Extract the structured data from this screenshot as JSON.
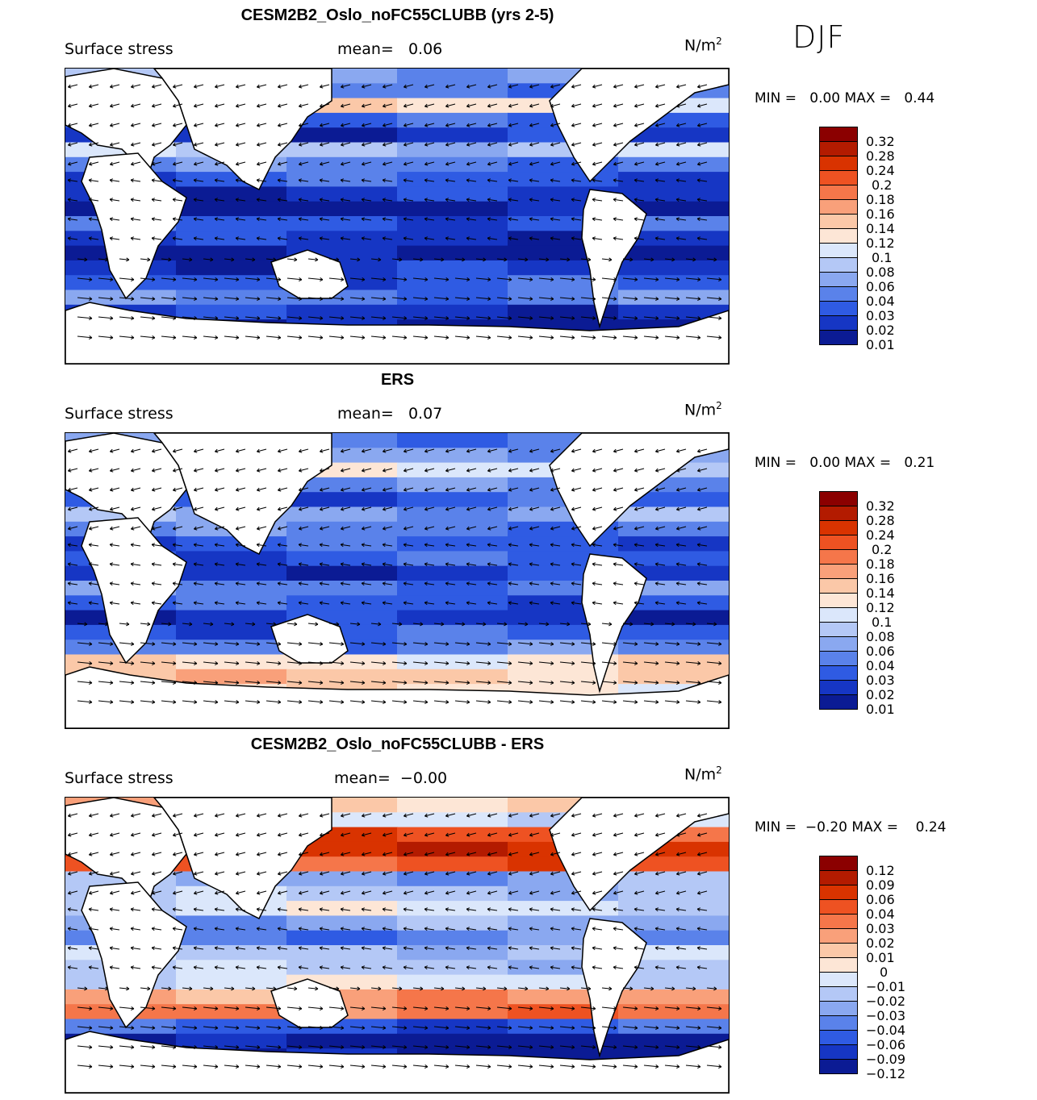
{
  "season": "DJF",
  "panels": [
    {
      "title": "CESM2B2_Oslo_noFC55CLUBB (yrs 2-5)",
      "variable": "Surface stress",
      "mean_label": "mean=",
      "mean_value": "0.06",
      "unit_base": "N/m",
      "unit_exp": "2",
      "min_label": "MIN =",
      "min_value": "0.00",
      "max_label": "MAX =",
      "max_value": "0.44",
      "legend_labels": [
        "0.32",
        "0.28",
        "0.24",
        "0.2",
        "0.18",
        "0.16",
        "0.14",
        "0.12",
        "0.1",
        "0.08",
        "0.06",
        "0.04",
        "0.03",
        "0.02",
        "0.01"
      ],
      "legend_colors": [
        "#8b0000",
        "#b31b00",
        "#d93300",
        "#ee5222",
        "#f5764a",
        "#f9a07a",
        "#fbc8a8",
        "#fde6d6",
        "#dbe7fb",
        "#b4c8f6",
        "#8aa8f0",
        "#5a82ea",
        "#2f5be3",
        "#1636c4",
        "#0b1b94"
      ]
    },
    {
      "title": "ERS",
      "variable": "Surface stress",
      "mean_label": "mean=",
      "mean_value": "0.07",
      "unit_base": "N/m",
      "unit_exp": "2",
      "min_label": "MIN =",
      "min_value": "0.00",
      "max_label": "MAX =",
      "max_value": "0.21",
      "legend_labels": [
        "0.32",
        "0.28",
        "0.24",
        "0.2",
        "0.18",
        "0.16",
        "0.14",
        "0.12",
        "0.1",
        "0.08",
        "0.06",
        "0.04",
        "0.03",
        "0.02",
        "0.01"
      ],
      "legend_colors": [
        "#8b0000",
        "#b31b00",
        "#d93300",
        "#ee5222",
        "#f5764a",
        "#f9a07a",
        "#fbc8a8",
        "#fde6d6",
        "#dbe7fb",
        "#b4c8f6",
        "#8aa8f0",
        "#5a82ea",
        "#2f5be3",
        "#1636c4",
        "#0b1b94"
      ]
    },
    {
      "title": "CESM2B2_Oslo_noFC55CLUBB - ERS",
      "variable": "Surface stress",
      "mean_label": "mean=",
      "mean_value": "−0.00",
      "unit_base": "N/m",
      "unit_exp": "2",
      "min_label": "MIN =",
      "min_value": "−0.20",
      "max_label": "MAX =",
      "max_value": "0.24",
      "legend_labels": [
        "0.12",
        "0.09",
        "0.06",
        "0.04",
        "0.03",
        "0.02",
        "0.01",
        "0",
        "−0.01",
        "−0.02",
        "−0.03",
        "−0.04",
        "−0.06",
        "−0.09",
        "−0.12"
      ],
      "legend_colors": [
        "#8b0000",
        "#b31b00",
        "#d93300",
        "#ee5222",
        "#f5764a",
        "#f9a07a",
        "#fbc8a8",
        "#fde6d6",
        "#dbe7fb",
        "#b4c8f6",
        "#8aa8f0",
        "#5a82ea",
        "#2f5be3",
        "#1636c4",
        "#0b1b94"
      ]
    }
  ]
}
